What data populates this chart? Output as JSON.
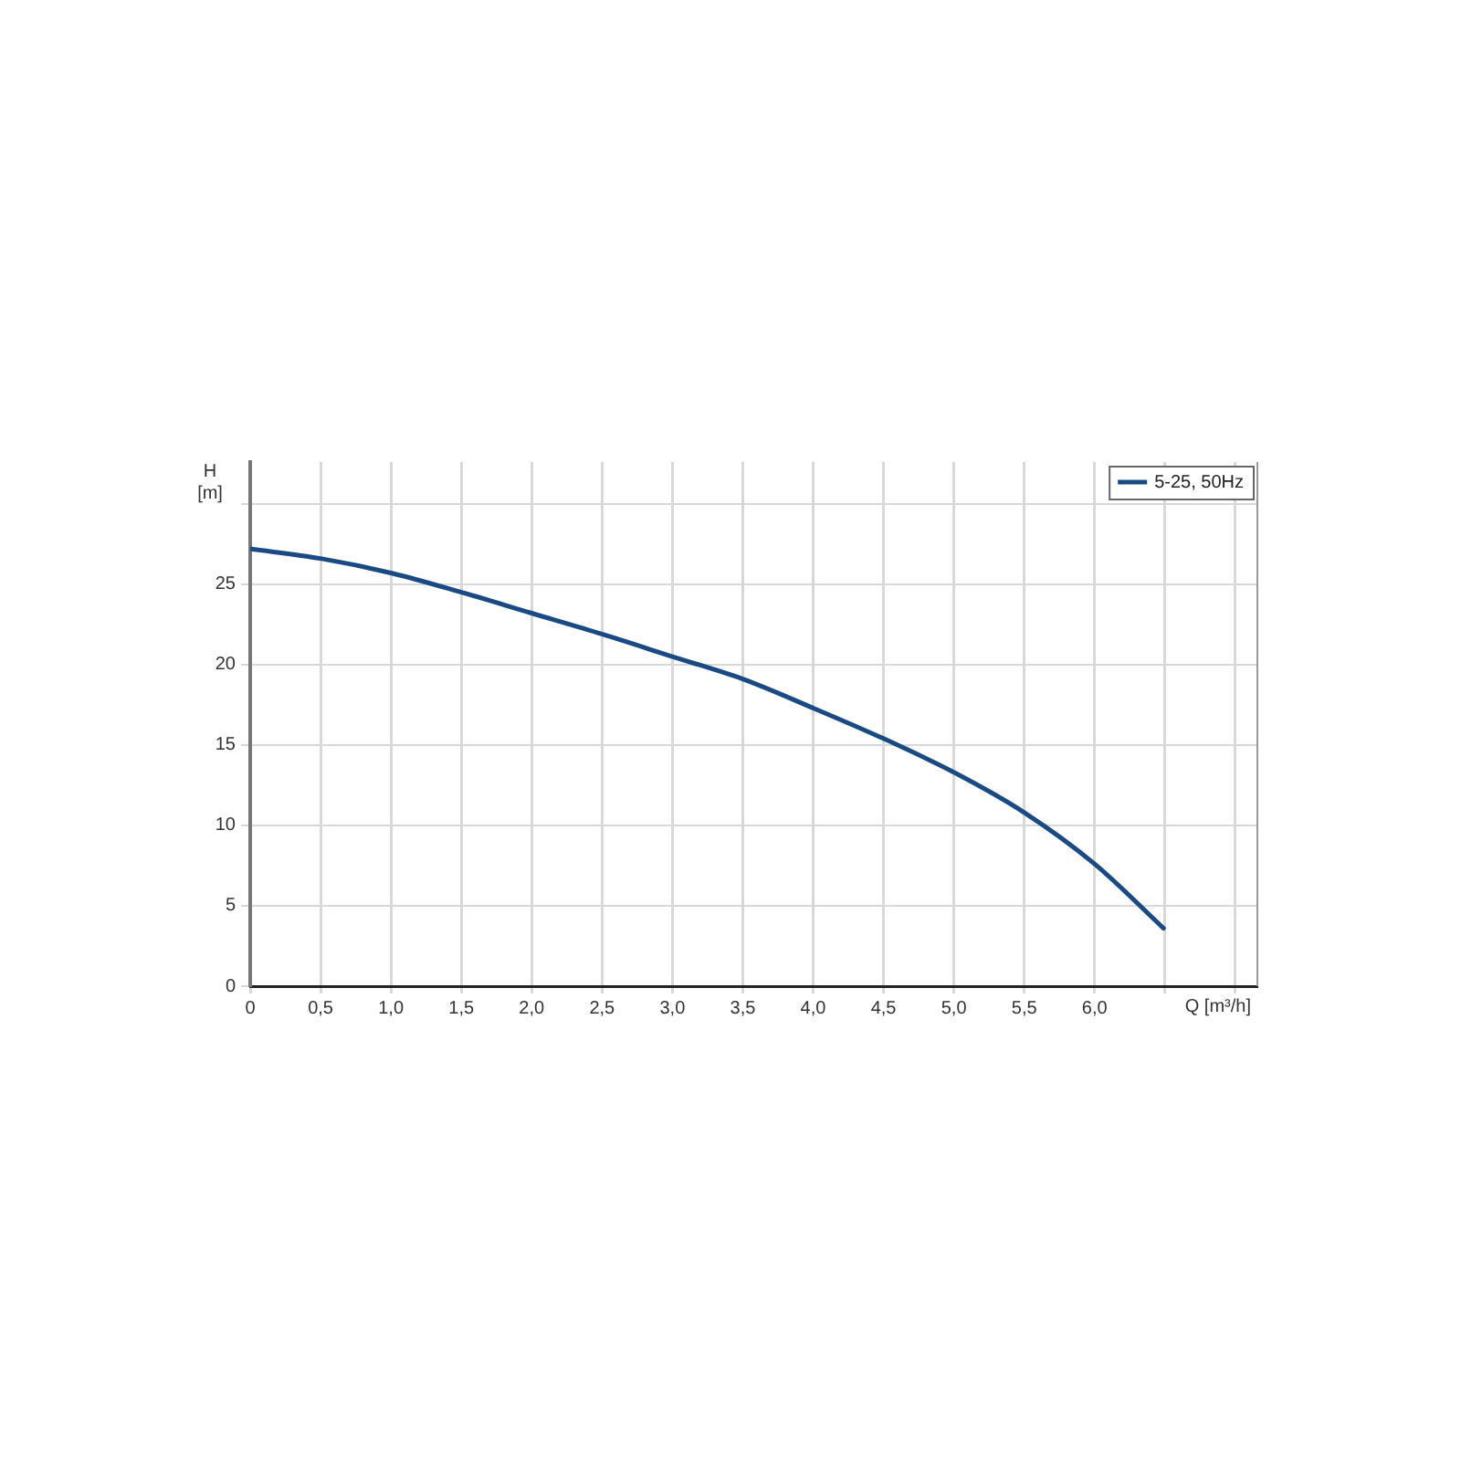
{
  "chart_data": {
    "type": "line",
    "xlabel": "Q [m³/h]",
    "ylabel": "H [m]",
    "x": [
      0,
      0.5,
      1.0,
      1.5,
      2.0,
      2.5,
      3.0,
      3.5,
      4.0,
      4.5,
      5.0,
      5.5,
      6.0,
      6.49
    ],
    "series": [
      {
        "name": "5-25, 50Hz",
        "color": "#1a4a86",
        "values": [
          27.2,
          26.6,
          25.7,
          24.5,
          23.2,
          21.9,
          20.5,
          19.1,
          17.3,
          15.4,
          13.3,
          10.8,
          7.6,
          3.6
        ]
      }
    ],
    "xlim": [
      0,
      7.15
    ],
    "xticks": [
      0,
      {
        "value": 0.5,
        "label": "0,5"
      },
      {
        "value": 1,
        "label": "1,0"
      },
      {
        "value": 1.5,
        "label": "1,5"
      },
      {
        "value": 2,
        "label": "2,0"
      },
      {
        "value": 2.5,
        "label": "2,5"
      },
      {
        "value": 3,
        "label": "3,0"
      },
      {
        "value": 3.5,
        "label": "3,5"
      },
      {
        "value": 4,
        "label": "4,0"
      },
      {
        "value": 4.5,
        "label": "4,5"
      },
      {
        "value": 5,
        "label": "5,0"
      },
      {
        "value": 5.5,
        "label": "5,5"
      },
      {
        "value": 6,
        "label": "6,0"
      },
      {
        "value": 6.5,
        "label": null
      },
      {
        "value": 7,
        "label": null
      }
    ],
    "ylim": [
      0,
      32.6
    ],
    "yticks": [
      0,
      5,
      10,
      15,
      20,
      25,
      {
        "value": 30,
        "label": null
      }
    ],
    "grid": true,
    "legend": "top right",
    "marker": "none",
    "line_style": "solid"
  }
}
